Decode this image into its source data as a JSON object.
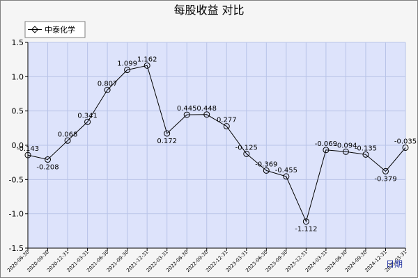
{
  "chart_data": {
    "type": "line",
    "title": "每股收益  对比",
    "xlabel": "日期",
    "ylabel": "",
    "ylim": [
      -1.5,
      1.5
    ],
    "yticks": [
      "1.5",
      "1.0",
      "0.5",
      "0.0",
      "-0.5",
      "-1.0",
      "-1.5"
    ],
    "grid": true,
    "legend_position": "top-left",
    "categories": [
      "2020-06-30",
      "2020-09-30",
      "2020-12-31",
      "2021-03-31",
      "2021-06-30",
      "2021-09-30",
      "2021-12-31",
      "2022-03-31",
      "2022-06-30",
      "2022-09-30",
      "2022-12-31",
      "2023-03-31",
      "2023-06-30",
      "2023-09-30",
      "2023-12-31",
      "2024-03-31",
      "2024-06-30",
      "2024-09-30",
      "2024-12-31",
      "2025-03-31"
    ],
    "series": [
      {
        "name": "中泰化学",
        "color": "#000000",
        "values": [
          -0.143,
          -0.208,
          0.068,
          0.341,
          0.807,
          1.099,
          1.162,
          0.172,
          0.445,
          0.448,
          0.277,
          -0.125,
          -0.369,
          -0.455,
          -1.112,
          -0.069,
          -0.094,
          -0.135,
          -0.379,
          -0.035
        ]
      }
    ],
    "data_labels": [
      "-0.143",
      "-0.208",
      "0.068",
      "0.341",
      "0.807",
      "1.099",
      "1.162",
      "0.172",
      "0.445",
      "0.448",
      "0.277",
      "-0.125",
      "-0.369",
      "-0.455",
      "-1.112",
      "-0.069",
      "-0.094",
      "-0.135",
      "-0.379",
      "-0.035"
    ],
    "colors": {
      "plot_background": "#dde3fb",
      "gridline": "#b8c3e8",
      "page_background": "#f5f5f5",
      "xlabel_color": "#1f2f9f"
    }
  }
}
